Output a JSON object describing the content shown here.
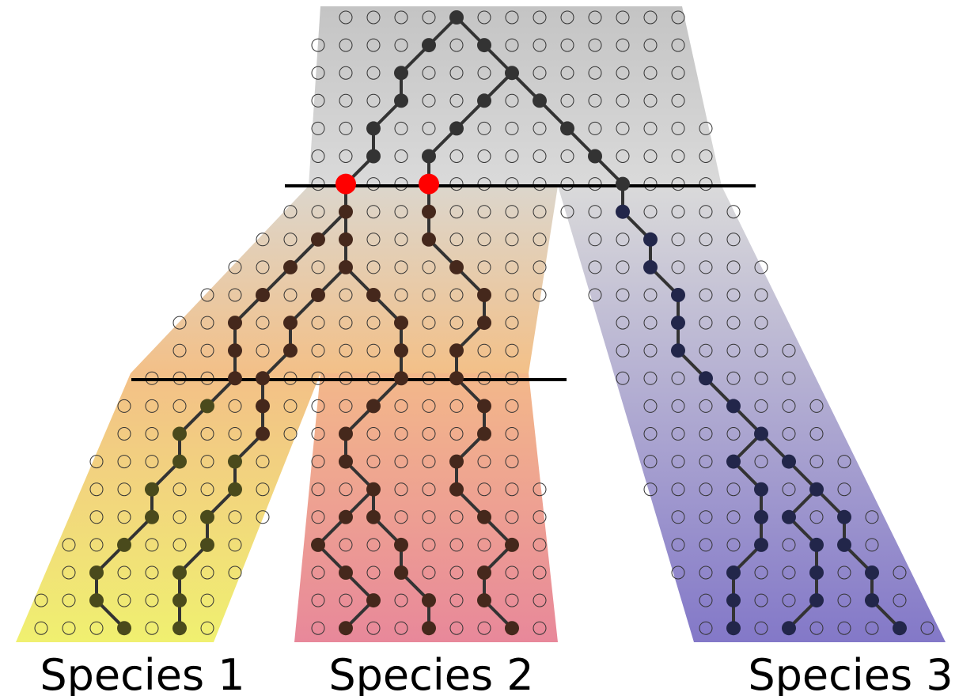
{
  "labels": [
    "Species 1",
    "Species 2",
    "Species 3"
  ]
}
